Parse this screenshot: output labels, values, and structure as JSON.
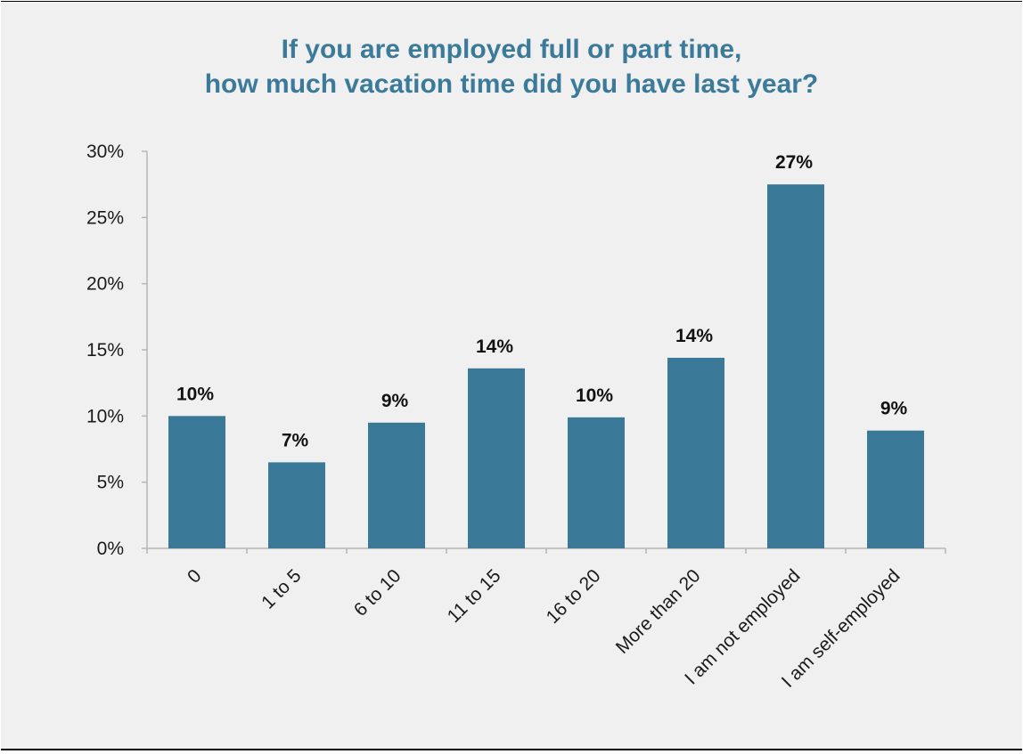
{
  "colors": {
    "background": "#f0f0f0",
    "title": "#3c7a9a",
    "bar": "#3a7898",
    "axis": "#b5b5b5"
  },
  "chart_data": {
    "type": "bar",
    "title_lines": [
      "If you are employed full or part time,",
      "how much vacation time did you have last year?"
    ],
    "categories": [
      "0",
      "1 to 5",
      "6 to 10",
      "11 to 15",
      "16 to 20",
      "More than 20",
      "I am not employed",
      "I am self-employed"
    ],
    "values": [
      10.0,
      6.5,
      9.5,
      13.6,
      9.9,
      14.4,
      27.5,
      8.9
    ],
    "data_labels": [
      "10%",
      "7%",
      "9%",
      "14%",
      "10%",
      "14%",
      "27%",
      "9%"
    ],
    "y_ticks": [
      0,
      5,
      10,
      15,
      20,
      25,
      30
    ],
    "y_tick_labels": [
      "0%",
      "5%",
      "10%",
      "15%",
      "20%",
      "25%",
      "30%"
    ],
    "ylim": [
      0,
      30
    ],
    "xlabel": "",
    "ylabel": "",
    "grid": false,
    "legend": "none"
  }
}
